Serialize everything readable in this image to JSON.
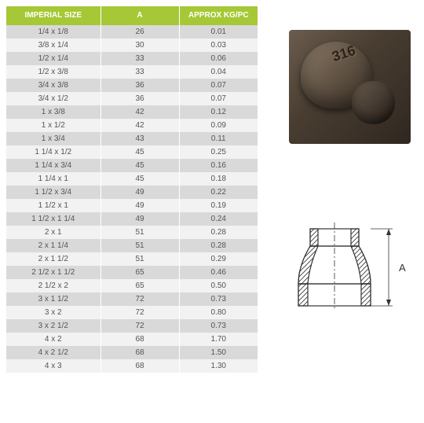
{
  "table": {
    "headers": {
      "size": "IMPERIAL\nSIZE",
      "a": "A",
      "kg": "APPROX\nKG/PC"
    },
    "header_bg": "#a6c836",
    "header_fg": "#ffffff",
    "row_odd_bg": "#d9d9d9",
    "row_even_bg": "#f2f2f2",
    "text_color": "#555555",
    "font_size": 10,
    "rows": [
      {
        "size": "1/4 x 1/8",
        "a": "26",
        "kg": "0.01"
      },
      {
        "size": "3/8 x 1/4",
        "a": "30",
        "kg": "0.03"
      },
      {
        "size": "1/2 x 1/4",
        "a": "33",
        "kg": "0.06"
      },
      {
        "size": "1/2 x 3/8",
        "a": "33",
        "kg": "0.04"
      },
      {
        "size": "3/4 x 3/8",
        "a": "36",
        "kg": "0.07"
      },
      {
        "size": "3/4 x 1/2",
        "a": "36",
        "kg": "0.07"
      },
      {
        "size": "1 x 3/8",
        "a": "42",
        "kg": "0.12"
      },
      {
        "size": "1 x 1/2",
        "a": "42",
        "kg": "0.09"
      },
      {
        "size": "1 x 3/4",
        "a": "43",
        "kg": "0.11"
      },
      {
        "size": "1 1/4 x 1/2",
        "a": "45",
        "kg": "0.25"
      },
      {
        "size": "1 1/4 x 3/4",
        "a": "45",
        "kg": "0.16"
      },
      {
        "size": "1 1/4 x 1",
        "a": "45",
        "kg": "0.18"
      },
      {
        "size": "1 1/2 x 3/4",
        "a": "49",
        "kg": "0.22"
      },
      {
        "size": "1 1/2 x 1",
        "a": "49",
        "kg": "0.19"
      },
      {
        "size": "1 1/2 x 1 1/4",
        "a": "49",
        "kg": "0.24"
      },
      {
        "size": "2 x 1",
        "a": "51",
        "kg": "0.28"
      },
      {
        "size": "2 x 1 1/4",
        "a": "51",
        "kg": "0.28"
      },
      {
        "size": "2 x 1 1/2",
        "a": "51",
        "kg": "0.29"
      },
      {
        "size": "2 1/2 x 1 1/2",
        "a": "65",
        "kg": "0.46"
      },
      {
        "size": "2 1/2 x 2",
        "a": "65",
        "kg": "0.50"
      },
      {
        "size": "3 x 1 1/2",
        "a": "72",
        "kg": "0.73"
      },
      {
        "size": "3 x 2",
        "a": "72",
        "kg": "0.80"
      },
      {
        "size": "3 x 2 1/2",
        "a": "72",
        "kg": "0.73"
      },
      {
        "size": "4 x 2",
        "a": "68",
        "kg": "1.70"
      },
      {
        "size": "4 x 2 1/2",
        "a": "68",
        "kg": "1.50"
      },
      {
        "size": "4 x 3",
        "a": "68",
        "kg": "1.30"
      }
    ]
  },
  "product_photo": {
    "stamp_text": "316",
    "description": "stainless-steel-reducing-socket"
  },
  "diagram": {
    "dimension_label": "A",
    "stroke": "#333333",
    "hatch": "#333333"
  }
}
